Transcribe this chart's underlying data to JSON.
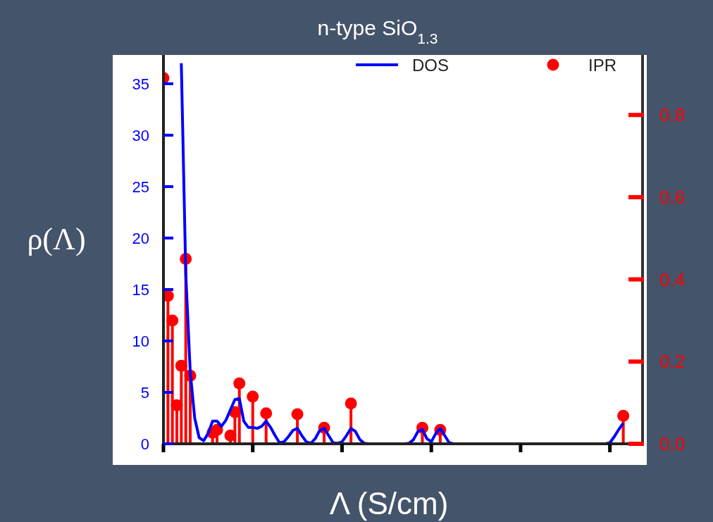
{
  "chart_data": {
    "type": "line",
    "title": "n-type SiO$_{1.3}$",
    "xlabel": "Λ (S/cm)",
    "ylabel": "ρ(Λ)",
    "categories": [
      null,
      null,
      null,
      null,
      null,
      null,
      null,
      null,
      null,
      null,
      null,
      null,
      null,
      null,
      null,
      null,
      null,
      null,
      null,
      null,
      null,
      null,
      null,
      null,
      null,
      null,
      null,
      null,
      null,
      null,
      null,
      null,
      null,
      null,
      null,
      null,
      null,
      null,
      null,
      null,
      null,
      null,
      null,
      null,
      null,
      null,
      null,
      null,
      null,
      null,
      null,
      null,
      null,
      null,
      null,
      null,
      null,
      null,
      null,
      null,
      null,
      null,
      null,
      null,
      null,
      null,
      null,
      null,
      null,
      null,
      null,
      null,
      null,
      null,
      null,
      null,
      null,
      null,
      null,
      null,
      null,
      null,
      null,
      null,
      null,
      null,
      null,
      null,
      null,
      null,
      null,
      null,
      null,
      null,
      null,
      null,
      null,
      null,
      null,
      null,
      null,
      null,
      null,
      null,
      null,
      null,
      null,
      null
    ],
    "ylim": [
      0,
      37.8
    ],
    "yticks": [
      0,
      5,
      10,
      15,
      20,
      25,
      30,
      35
    ],
    "y2lim": [
      0,
      0.946
    ],
    "y2ticks": [
      {
        "value": 0,
        "label": "0.0"
      },
      0.2,
      0.4,
      0.6,
      0.8
    ],
    "tick_labels": "y",
    "legend": "top",
    "series": [
      {
        "name": "DOS",
        "color": "#0000ff",
        "values": [
          null,
          null,
          null,
          null,
          37,
          16.5,
          7,
          2.5,
          0.6,
          0.3,
          1.0,
          2.2,
          2.2,
          1.7,
          2.3,
          3.3,
          4.3,
          4.4,
          2.2,
          1.6,
          1.6,
          1.5,
          1.7,
          2.2,
          1.6,
          0.8,
          0.1,
          0.2,
          0.7,
          1.3,
          1.5,
          0.8,
          0.2,
          0.05,
          0.5,
          1.3,
          1.5,
          0.8,
          0.1,
          0.05,
          0.2,
          0.8,
          1.5,
          1.2,
          0.4,
          0.05,
          0,
          0,
          0,
          0,
          0,
          0,
          0,
          0,
          0,
          0.05,
          0.4,
          1.2,
          1.4,
          0.5,
          0.2,
          1.0,
          1.5,
          0.8,
          0.1,
          0,
          0,
          0,
          0,
          0,
          0,
          0,
          0,
          0,
          0,
          0,
          0,
          0,
          0,
          0,
          0,
          0,
          0,
          0,
          0,
          0,
          0,
          0,
          0,
          0,
          0,
          0,
          0,
          0,
          0,
          0,
          0,
          0,
          0,
          0,
          0.1,
          0.7,
          1.4,
          2.0,
          null,
          null,
          null,
          null
        ]
      },
      {
        "name": "IPR",
        "type": "lollipop",
        "axis": "y2",
        "marker": "circle",
        "color": "#ff0000",
        "values": [
          0.89,
          0.36,
          0.3,
          0.094,
          0.19,
          0.45,
          0.166,
          null,
          null,
          null,
          null,
          0.027,
          0.034,
          null,
          null,
          0.02,
          0.077,
          0.147,
          null,
          null,
          0.115,
          null,
          null,
          0.074,
          null,
          null,
          null,
          null,
          null,
          null,
          0.072,
          null,
          null,
          null,
          null,
          null,
          0.039,
          null,
          null,
          null,
          null,
          null,
          0.098,
          null,
          null,
          null,
          null,
          null,
          null,
          null,
          null,
          null,
          null,
          null,
          null,
          null,
          null,
          null,
          0.039,
          null,
          null,
          null,
          0.034,
          null,
          null,
          null,
          null,
          null,
          null,
          null,
          null,
          null,
          null,
          null,
          null,
          null,
          null,
          null,
          null,
          null,
          null,
          null,
          null,
          null,
          null,
          null,
          null,
          null,
          null,
          null,
          null,
          null,
          null,
          null,
          null,
          null,
          null,
          null,
          null,
          null,
          null,
          null,
          null,
          0.068,
          null,
          null,
          null,
          null
        ]
      }
    ]
  }
}
